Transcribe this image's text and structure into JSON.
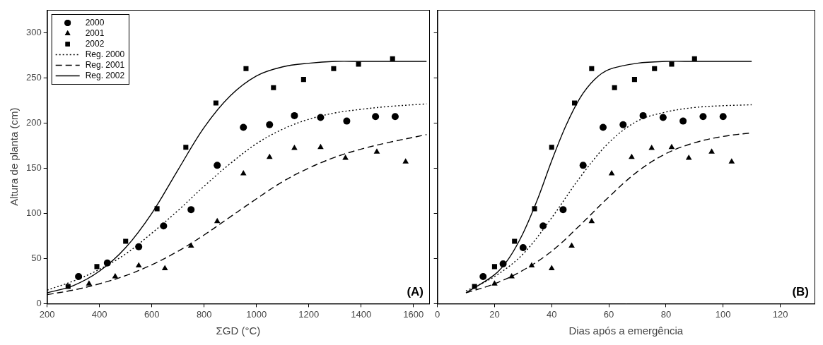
{
  "chart_data": [
    {
      "type": "scatter",
      "x_label": "ΣGD (°C)",
      "y_label": "Altura de planta (cm)",
      "annotation": "(A)",
      "xlim": [
        200,
        1660
      ],
      "xticks": [
        200,
        400,
        600,
        800,
        1000,
        1200,
        1400,
        1600
      ],
      "ylim": [
        0,
        325
      ],
      "yticks": [
        0,
        50,
        100,
        150,
        200,
        250,
        300
      ],
      "grid": false,
      "legend": "upper left",
      "series": [
        {
          "name": "2000",
          "type": "scatter",
          "marker": "circle",
          "color": "#000000",
          "x": [
            320,
            430,
            550,
            645,
            750,
            850,
            950,
            1050,
            1145,
            1245,
            1345,
            1455,
            1530
          ],
          "values": [
            30,
            45,
            63,
            86,
            104,
            153,
            195,
            198,
            208,
            206,
            202,
            207,
            207
          ]
        },
        {
          "name": "2001",
          "type": "scatter",
          "marker": "triangle",
          "color": "#000000",
          "x": [
            360,
            460,
            550,
            650,
            750,
            850,
            950,
            1050,
            1145,
            1245,
            1340,
            1460,
            1570
          ],
          "values": [
            22,
            30,
            42,
            39,
            64,
            91,
            144,
            162,
            172,
            173,
            161,
            168,
            157
          ]
        },
        {
          "name": "2002",
          "type": "scatter",
          "marker": "square",
          "color": "#000000",
          "x": [
            280,
            390,
            500,
            620,
            730,
            845,
            960,
            1065,
            1180,
            1295,
            1390,
            1520
          ],
          "values": [
            19,
            41,
            69,
            105,
            173,
            222,
            260,
            239,
            248,
            260,
            265,
            271
          ]
        },
        {
          "name": "Reg. 2000",
          "type": "line",
          "line_style": "dotted",
          "color": "#000000",
          "x": [
            200,
            300,
            400,
            500,
            600,
            700,
            800,
            900,
            1000,
            1100,
            1200,
            1300,
            1400,
            1500,
            1650
          ],
          "values": [
            15,
            25,
            38,
            55,
            78,
            103,
            130,
            155,
            177,
            193,
            204,
            211,
            215,
            218,
            221
          ]
        },
        {
          "name": "Reg. 2001",
          "type": "line",
          "line_style": "dashed",
          "color": "#000000",
          "x": [
            200,
            300,
            400,
            500,
            600,
            700,
            800,
            900,
            1000,
            1100,
            1200,
            1300,
            1400,
            1500,
            1650
          ],
          "values": [
            10,
            15,
            22,
            31,
            43,
            58,
            76,
            96,
            116,
            135,
            150,
            162,
            171,
            178,
            187
          ]
        },
        {
          "name": "Reg. 2002",
          "type": "line",
          "line_style": "solid",
          "color": "#000000",
          "x": [
            200,
            300,
            400,
            500,
            600,
            700,
            800,
            900,
            1000,
            1100,
            1200,
            1300,
            1400,
            1500,
            1650
          ],
          "values": [
            12,
            20,
            36,
            62,
            100,
            148,
            195,
            230,
            252,
            262,
            266,
            268,
            268,
            268,
            268
          ]
        }
      ]
    },
    {
      "type": "scatter",
      "x_label": "Dias após a emergência",
      "annotation": "(B)",
      "xlim": [
        0,
        132
      ],
      "xticks": [
        0,
        20,
        40,
        60,
        80,
        100,
        120
      ],
      "ylim": [
        0,
        325
      ],
      "yticks": [
        0,
        50,
        100,
        150,
        200,
        250,
        300
      ],
      "grid": false,
      "tick_labels": "x",
      "series": [
        {
          "name": "2000",
          "type": "scatter",
          "marker": "circle",
          "color": "#000000",
          "x": [
            16,
            23,
            30,
            37,
            44,
            51,
            58,
            65,
            72,
            79,
            86,
            93,
            100
          ],
          "values": [
            30,
            44,
            62,
            86,
            104,
            153,
            195,
            198,
            208,
            206,
            202,
            207,
            207
          ]
        },
        {
          "name": "2001",
          "type": "scatter",
          "marker": "triangle",
          "color": "#000000",
          "x": [
            20,
            26,
            33,
            40,
            47,
            54,
            61,
            68,
            75,
            82,
            88,
            96,
            103
          ],
          "values": [
            22,
            30,
            42,
            39,
            64,
            91,
            144,
            162,
            172,
            173,
            161,
            168,
            157
          ]
        },
        {
          "name": "2002",
          "type": "scatter",
          "marker": "square",
          "color": "#000000",
          "x": [
            13,
            20,
            27,
            34,
            40,
            48,
            54,
            62,
            69,
            76,
            82,
            90
          ],
          "values": [
            19,
            41,
            69,
            105,
            173,
            222,
            260,
            239,
            248,
            260,
            265,
            271
          ]
        },
        {
          "name": "Reg. 2000",
          "type": "line",
          "line_style": "dotted",
          "color": "#000000",
          "x": [
            10,
            20,
            30,
            40,
            50,
            60,
            70,
            80,
            90,
            100,
            110
          ],
          "values": [
            14,
            30,
            55,
            95,
            140,
            178,
            202,
            212,
            217,
            219,
            220
          ]
        },
        {
          "name": "Reg. 2001",
          "type": "line",
          "line_style": "dashed",
          "color": "#000000",
          "x": [
            10,
            20,
            30,
            40,
            50,
            60,
            70,
            80,
            90,
            100,
            110
          ],
          "values": [
            12,
            22,
            37,
            58,
            87,
            118,
            146,
            166,
            178,
            185,
            189
          ]
        },
        {
          "name": "Reg. 2002",
          "type": "line",
          "line_style": "solid",
          "color": "#000000",
          "x": [
            10,
            20,
            25,
            30,
            35,
            40,
            45,
            50,
            55,
            60,
            70,
            80,
            90,
            100,
            110
          ],
          "values": [
            12,
            32,
            50,
            78,
            115,
            158,
            197,
            228,
            248,
            259,
            266,
            268,
            268,
            268,
            268
          ]
        }
      ]
    }
  ]
}
